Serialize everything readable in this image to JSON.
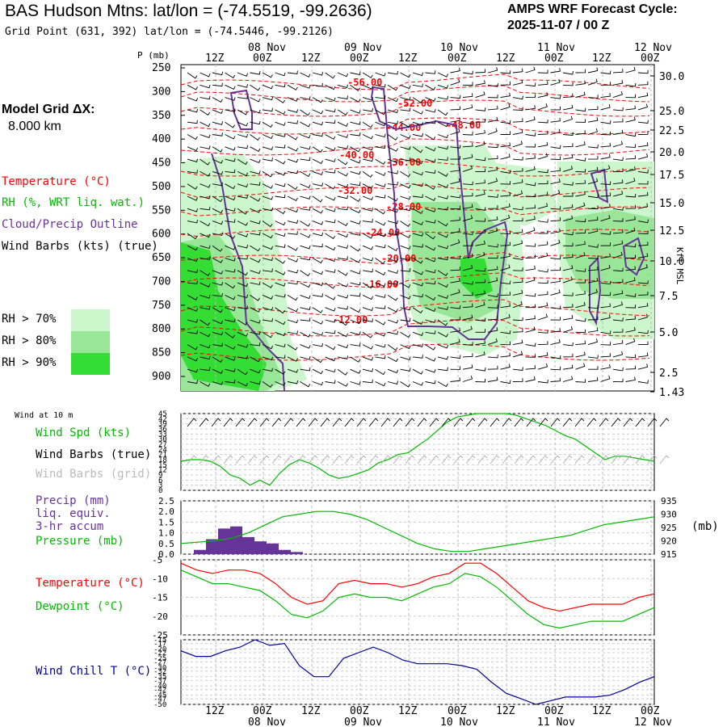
{
  "header": {
    "title": "BAS Hudson Mtns:  lat/lon = (-74.5519, -99.2636)",
    "subtitle": "Grid Point (631, 392) lat/lon = (-74.5446, -99.2126)",
    "cycle_line1": "AMPS WRF Forecast Cycle:",
    "cycle_line2": "2025-11-07 / 00  Z"
  },
  "legend": {
    "model_grid_label": "Model Grid ΔX:",
    "model_grid_value": "8.000 km",
    "temperature": "Temperature (°C)",
    "rh": "RH (%, WRT liq. wat.)",
    "cloud": "Cloud/Precip Outline",
    "wind": "Wind Barbs (kts) (true)",
    "rh70": "RH > 70%",
    "rh80": "RH > 80%",
    "rh90": "RH > 90%",
    "wind10m": "Wind at 10 m",
    "wind_spd": "Wind Spd (kts)",
    "barbs_true": "Wind Barbs (true)",
    "barbs_grid": "Wind Barbs (grid)",
    "precip1": "Precip (mm)",
    "precip2": "liq. equiv.",
    "precip3": "3-hr accum",
    "pressure": "Pressure (mb)",
    "mb_unit": "(mb)",
    "temp2": "Temperature (°C)",
    "dew": "Dewpoint (°C)",
    "windchill": "Wind Chill T (°C)",
    "kft": "Kft MSL",
    "p_axis": "P (mb)"
  },
  "colors": {
    "temp": "#ff0000",
    "rh": "#00bb00",
    "cloud": "#663399",
    "wind": "#000000",
    "wind_grid": "#aaaaaa",
    "precip": "#663399",
    "pressure": "#00bb00",
    "dew": "#00bb00",
    "windchill": "#000099",
    "rh70": "#ccf7cc",
    "rh80": "#99e699",
    "rh90": "#33dd33"
  },
  "chart_data": [
    {
      "type": "heatmap",
      "name": "time-height cross section",
      "time_labels_top": [
        "12Z",
        "00Z",
        "12Z",
        "00Z",
        "12Z",
        "00Z",
        "12Z",
        "00Z",
        "12Z",
        "00Z"
      ],
      "date_labels": [
        "08 Nov",
        "09 Nov",
        "10 Nov",
        "11 Nov",
        "12 Nov"
      ],
      "p_levels": [
        250,
        300,
        350,
        400,
        450,
        500,
        550,
        600,
        650,
        700,
        750,
        800,
        850,
        900
      ],
      "kft_levels": [
        "30.0",
        "25.0",
        "22.5",
        "20.0",
        "17.5",
        "15.0",
        "12.5",
        "10.0",
        "7.5",
        "5.0",
        "2.5",
        "1.43"
      ],
      "temp_contour_labels": [
        "-56.00",
        "-52.00",
        "-44.00",
        "-48.00",
        "-40.00",
        "-36.00",
        "-32.00",
        "-28.00",
        "-24.00",
        "-20.00",
        "-16.00",
        "-12.00"
      ]
    },
    {
      "type": "line",
      "name": "wind speed 10 m",
      "ylabel": "Wind Spd (kts)",
      "yticks": [
        0,
        3,
        6,
        9,
        12,
        15,
        18,
        21,
        24,
        27,
        30,
        33,
        36,
        39,
        42,
        45
      ],
      "ylim": [
        0,
        45
      ],
      "x_hours": [
        0,
        6,
        12,
        18,
        24,
        30,
        36,
        42,
        48,
        54,
        60,
        66,
        72,
        78,
        84,
        90,
        96,
        102,
        108,
        114,
        120,
        126,
        132,
        138,
        144,
        150,
        156,
        162,
        168,
        174,
        180,
        186,
        192,
        198,
        204,
        210,
        216,
        222,
        228,
        234,
        240,
        246,
        252,
        258,
        264,
        270,
        276,
        282,
        288
      ],
      "values": [
        17,
        18,
        18,
        17,
        14,
        9,
        7,
        3,
        6,
        3,
        10,
        15,
        18,
        16,
        13,
        9,
        7,
        8,
        10,
        12,
        16,
        18,
        21,
        22,
        26,
        30,
        35,
        40,
        43,
        44,
        45,
        45,
        45,
        45,
        44,
        42,
        40,
        38,
        35,
        32,
        30,
        26,
        22,
        18,
        20,
        20,
        19,
        18,
        17
      ]
    },
    {
      "type": "bar",
      "name": "3-hr precip",
      "ylabel": "Precip (mm)",
      "ylim": [
        0,
        2.5
      ],
      "yticks": [
        "0.0",
        "0.5",
        "1.0",
        "1.5",
        "2.0",
        "2.5"
      ],
      "values": [
        0.2,
        0.7,
        1.2,
        1.3,
        0.8,
        0.6,
        0.5,
        0.2,
        0.1
      ]
    },
    {
      "type": "line",
      "name": "surface pressure",
      "ylabel": "Pressure (mb)",
      "ylim": [
        915,
        935
      ],
      "yticks": [
        915,
        920,
        925,
        930,
        935
      ],
      "values": [
        919,
        919.5,
        920,
        921,
        923,
        926,
        929,
        930,
        931,
        931,
        930,
        928,
        925,
        922,
        919,
        917,
        916,
        916,
        917,
        918,
        919,
        920,
        921,
        922,
        924,
        926,
        927,
        928,
        929
      ]
    },
    {
      "type": "line",
      "name": "temperature and dewpoint",
      "ylim": [
        -25,
        -5
      ],
      "yticks": [
        -5,
        -10,
        -15,
        -20,
        -25
      ],
      "series": [
        {
          "name": "Temperature",
          "values": [
            -5,
            -7,
            -8,
            -7,
            -7,
            -8,
            -11,
            -15,
            -17,
            -16,
            -11,
            -10,
            -11,
            -11,
            -12,
            -11,
            -9,
            -8,
            -5,
            -5,
            -8,
            -12,
            -16,
            -18,
            -19,
            -18,
            -17,
            -17,
            -17,
            -15,
            -14
          ]
        },
        {
          "name": "Dewpoint",
          "values": [
            -7,
            -9,
            -11,
            -11,
            -12,
            -13,
            -16,
            -20,
            -21,
            -19,
            -15,
            -14,
            -15,
            -15,
            -16,
            -14,
            -12,
            -11,
            -8,
            -9,
            -12,
            -16,
            -20,
            -23,
            -24,
            -23,
            -22,
            -22,
            -22,
            -20,
            -18
          ]
        }
      ]
    },
    {
      "type": "line",
      "name": "wind chill",
      "ylabel": "Wind Chill T (°C)",
      "ylim": [
        -50,
        -15
      ],
      "yticks": [
        -15,
        -17,
        -20,
        -22,
        -25,
        -27,
        -30,
        -32,
        -35,
        -37,
        -40,
        -42,
        -45,
        -47,
        -50
      ],
      "values": [
        -21,
        -24,
        -24,
        -21,
        -19,
        -15,
        -18,
        -17,
        -29,
        -35,
        -35,
        -25,
        -22,
        -19,
        -22,
        -26,
        -28,
        -28,
        -28,
        -29,
        -31,
        -38,
        -44,
        -47,
        -50,
        -48,
        -46,
        -46,
        -46,
        -45,
        -42,
        -38,
        -35
      ]
    }
  ]
}
